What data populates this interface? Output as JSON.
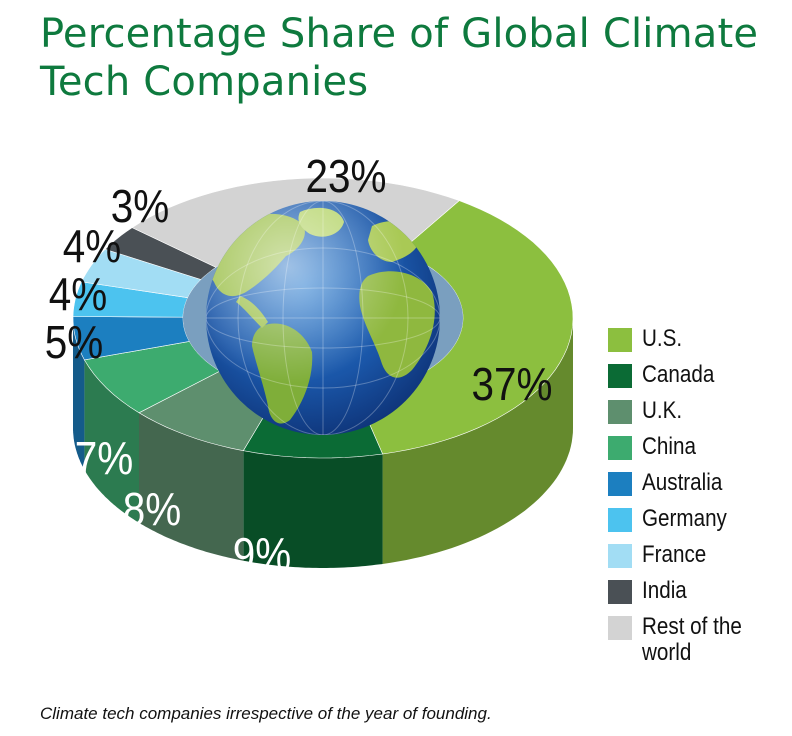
{
  "title": "Percentage Share of Global Climate Tech Companies",
  "caption": "Climate tech companies irrespective of the year of founding.",
  "chart_data": {
    "type": "pie",
    "style": "3d-donut",
    "title": "Percentage Share of Global Climate Tech Companies",
    "labels": [
      "U.S.",
      "Canada",
      "U.K.",
      "China",
      "Australia",
      "Germany",
      "France",
      "India",
      "Rest of the world"
    ],
    "values": [
      37,
      9,
      8,
      7,
      5,
      4,
      4,
      3,
      23
    ],
    "value_labels": [
      "37%",
      "9%",
      "8%",
      "7%",
      "5%",
      "4%",
      "4%",
      "3%",
      "23%"
    ],
    "colors": [
      "#8cbf3f",
      "#0b6b35",
      "#5e8f6e",
      "#3dab6f",
      "#1c7fc0",
      "#4cc3ef",
      "#a2ddf4",
      "#4a5055",
      "#d3d3d3"
    ],
    "legend_position": "right"
  }
}
